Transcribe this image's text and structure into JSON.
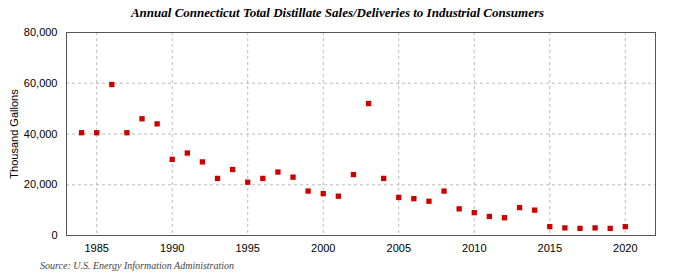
{
  "chart_data": {
    "type": "scatter",
    "title": "Annual Connecticut Total Distillate Sales/Deliveries to Industrial Consumers",
    "ylabel": "Thousand Gallons",
    "annotations": [
      "Source: U.S. Energy Information Administration"
    ],
    "color": "#cc0000",
    "marker": "square",
    "grid": true,
    "xlim": [
      1983,
      2022
    ],
    "xticks": [
      1985,
      1990,
      1995,
      2000,
      2005,
      2010,
      2015,
      2020
    ],
    "ylim": [
      0,
      80000
    ],
    "yticks": [
      0,
      {
        "value": 20000,
        "label": "20,000"
      },
      {
        "value": 40000,
        "label": "40,000"
      },
      {
        "value": 60000,
        "label": "60,000"
      },
      {
        "value": 80000,
        "label": "80,000"
      }
    ],
    "x": [
      1984,
      1985,
      1986,
      1987,
      1988,
      1989,
      1990,
      1991,
      1992,
      1993,
      1994,
      1995,
      1996,
      1997,
      1998,
      1999,
      2000,
      2001,
      2002,
      2003,
      2004,
      2005,
      2006,
      2007,
      2008,
      2009,
      2010,
      2011,
      2012,
      2013,
      2014,
      2015,
      2016,
      2017,
      2018,
      2019,
      2020
    ],
    "values": [
      40500,
      40500,
      59500,
      40500,
      46000,
      44000,
      30000,
      32500,
      29000,
      22500,
      26000,
      21000,
      22500,
      25000,
      23000,
      17500,
      16500,
      15500,
      24000,
      52000,
      22500,
      15000,
      14500,
      13500,
      17500,
      10500,
      9000,
      7500,
      7000,
      11000,
      10000,
      3500,
      3000,
      2800,
      3000,
      2800,
      3500
    ]
  }
}
